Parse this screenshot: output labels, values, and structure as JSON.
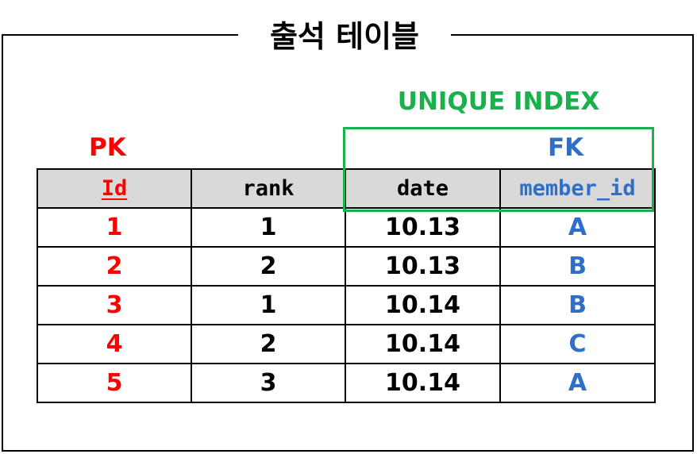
{
  "title": "출석 테이블",
  "labels": {
    "unique_index": "UNIQUE INDEX",
    "pk": "PK",
    "fk": "FK"
  },
  "table": {
    "columns": [
      "Id",
      "rank",
      "date",
      "member_id"
    ],
    "rows": [
      [
        "1",
        "1",
        "10.13",
        "A"
      ],
      [
        "2",
        "2",
        "10.13",
        "B"
      ],
      [
        "3",
        "1",
        "10.14",
        "B"
      ],
      [
        "4",
        "2",
        "10.14",
        "C"
      ],
      [
        "5",
        "3",
        "10.14",
        "A"
      ]
    ]
  },
  "colors": {
    "pk": "#ff0000",
    "fk": "#2f6fc8",
    "unique_index": "#1ab04b",
    "header_bg": "#d9d9d9"
  }
}
